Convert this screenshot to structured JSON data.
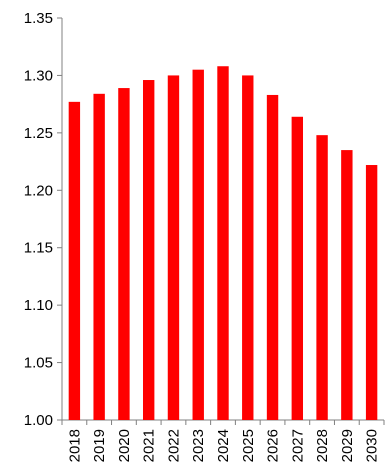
{
  "chart_data": {
    "type": "bar",
    "categories": [
      "2018",
      "2019",
      "2020",
      "2021",
      "2022",
      "2023",
      "2024",
      "2025",
      "2026",
      "2027",
      "2028",
      "2029",
      "2030"
    ],
    "values": [
      1.277,
      1.284,
      1.289,
      1.296,
      1.3,
      1.305,
      1.308,
      1.3,
      1.283,
      1.264,
      1.248,
      1.235,
      1.222
    ],
    "title": "",
    "xlabel": "",
    "ylabel": "",
    "ylim": [
      1.0,
      1.35
    ],
    "yticks": [
      "1.00",
      "1.05",
      "1.10",
      "1.15",
      "1.20",
      "1.25",
      "1.30",
      "1.35"
    ],
    "grid": false,
    "legend": "none",
    "bar_color": "#ff0000",
    "axis_color": "#808080"
  }
}
